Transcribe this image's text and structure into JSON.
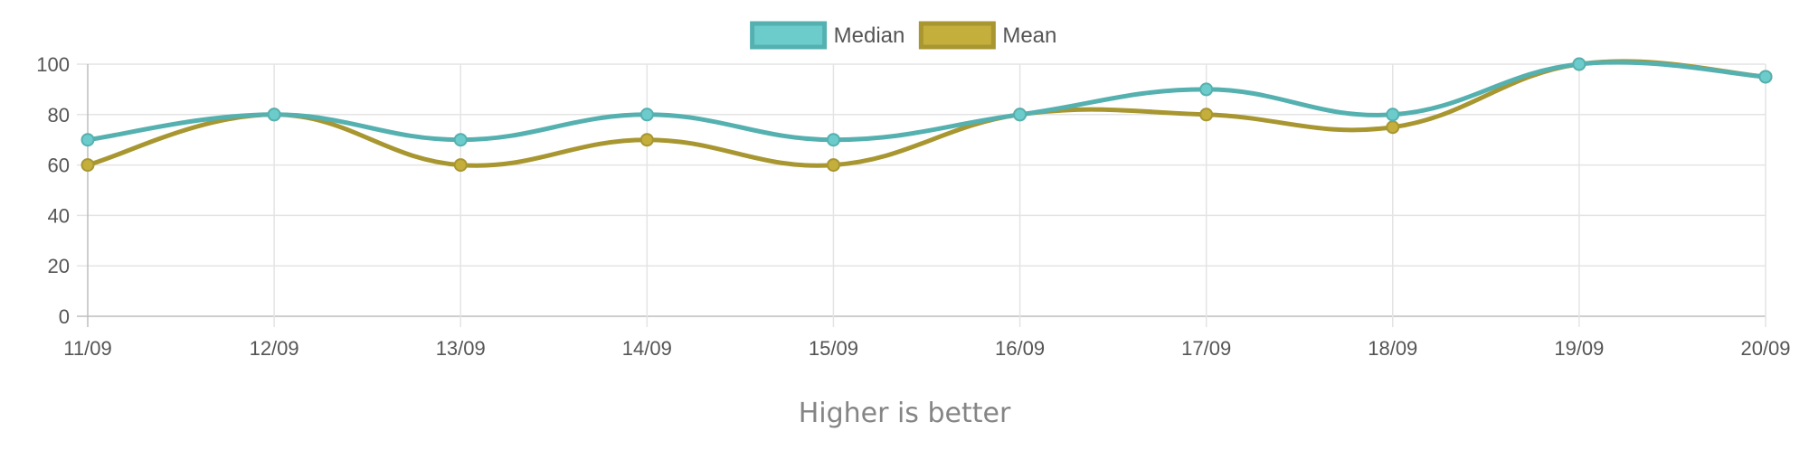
{
  "chart_data": {
    "type": "line",
    "categories": [
      "11/09",
      "12/09",
      "13/09",
      "14/09",
      "15/09",
      "16/09",
      "17/09",
      "18/09",
      "19/09",
      "20/09"
    ],
    "series": [
      {
        "name": "Median",
        "values": [
          70,
          80,
          70,
          80,
          70,
          80,
          90,
          80,
          100,
          95
        ],
        "color": "#55b0b0",
        "fill": "#6ccccc"
      },
      {
        "name": "Mean",
        "values": [
          60,
          80,
          60,
          70,
          60,
          80,
          80,
          75,
          100,
          95
        ],
        "color": "#a89630",
        "fill": "#c4ae3c"
      }
    ],
    "ylim": [
      0,
      100
    ],
    "yticks": [
      0,
      20,
      40,
      60,
      80,
      100
    ],
    "grid": true,
    "legend": "top-center",
    "caption": "Higher is better"
  }
}
